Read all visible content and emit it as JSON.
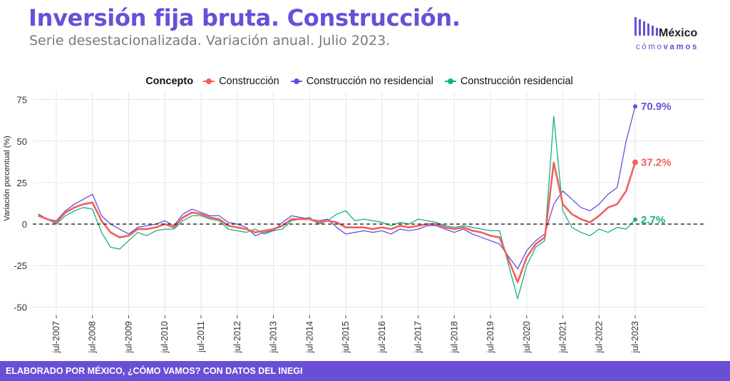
{
  "header": {
    "title": "Inversión fija bruta. Construcción.",
    "subtitle": "Serie desestacionalizada. Variación anual. Julio 2023."
  },
  "logo": {
    "name": "México",
    "sub_a": "cómo",
    "sub_b": "vamos"
  },
  "footer": {
    "text": "ELABORADO POR MÉXICO, ¿CÓMO VAMOS? CON DATOS DEL INEGI"
  },
  "colors": {
    "brand": "#6a4fd6",
    "construccion": "#f0605d",
    "no_residencial": "#6a4fd6",
    "residencial": "#17b086"
  },
  "chart_data": {
    "type": "line",
    "ylabel": "Variación porcentual (%)",
    "ylim": [
      -55,
      80
    ],
    "yticks": [
      -50,
      -25,
      0,
      25,
      50,
      75
    ],
    "ytick_labels": [
      "-50",
      "-25",
      "0",
      "25",
      "50",
      "75"
    ],
    "xlabels": [
      "jul-2007",
      "jul-2008",
      "jul-2009",
      "jul-2010",
      "jul-2011",
      "jul-2012",
      "jul-2013",
      "jul-2014",
      "jul-2015",
      "jul-2016",
      "jul-2017",
      "jul-2018",
      "jul-2019",
      "jul-2020",
      "jul-2021",
      "jul-2022",
      "jul-2023"
    ],
    "legend_title": "Concepto",
    "legend_position": "top",
    "reference_line": 0,
    "grid": true,
    "series": [
      {
        "name": "Construcción",
        "key": "construccion",
        "end_label": "37.2%",
        "points": [
          [
            "2007-01",
            5
          ],
          [
            "2007-04",
            3
          ],
          [
            "2007-07",
            1
          ],
          [
            "2007-10",
            7
          ],
          [
            "2008-01",
            10
          ],
          [
            "2008-04",
            12
          ],
          [
            "2008-07",
            13
          ],
          [
            "2008-10",
            2
          ],
          [
            "2009-01",
            -5
          ],
          [
            "2009-04",
            -8
          ],
          [
            "2009-07",
            -7
          ],
          [
            "2009-10",
            -3
          ],
          [
            "2010-01",
            -3
          ],
          [
            "2010-04",
            -2
          ],
          [
            "2010-07",
            0
          ],
          [
            "2010-10",
            -2
          ],
          [
            "2011-01",
            4
          ],
          [
            "2011-04",
            7
          ],
          [
            "2011-07",
            6
          ],
          [
            "2011-10",
            4
          ],
          [
            "2012-01",
            3
          ],
          [
            "2012-04",
            -1
          ],
          [
            "2012-07",
            -2
          ],
          [
            "2012-10",
            -3
          ],
          [
            "2013-01",
            -5
          ],
          [
            "2013-04",
            -4
          ],
          [
            "2013-07",
            -3
          ],
          [
            "2013-10",
            -1
          ],
          [
            "2014-01",
            3
          ],
          [
            "2014-04",
            3
          ],
          [
            "2014-07",
            3
          ],
          [
            "2014-10",
            1
          ],
          [
            "2015-01",
            2
          ],
          [
            "2015-04",
            1
          ],
          [
            "2015-07",
            -2
          ],
          [
            "2015-10",
            -2
          ],
          [
            "2016-01",
            -2
          ],
          [
            "2016-04",
            -3
          ],
          [
            "2016-07",
            -2
          ],
          [
            "2016-10",
            -3
          ],
          [
            "2017-01",
            -1
          ],
          [
            "2017-04",
            -2
          ],
          [
            "2017-07",
            -1
          ],
          [
            "2017-10",
            0
          ],
          [
            "2018-01",
            0
          ],
          [
            "2018-04",
            -2
          ],
          [
            "2018-07",
            -3
          ],
          [
            "2018-10",
            -2
          ],
          [
            "2019-01",
            -4
          ],
          [
            "2019-04",
            -5
          ],
          [
            "2019-07",
            -7
          ],
          [
            "2019-10",
            -8
          ],
          [
            "2020-04",
            -35
          ],
          [
            "2020-07",
            -20
          ],
          [
            "2020-10",
            -12
          ],
          [
            "2021-01",
            -8
          ],
          [
            "2021-04",
            37
          ],
          [
            "2021-07",
            12
          ],
          [
            "2021-10",
            6
          ],
          [
            "2022-01",
            3
          ],
          [
            "2022-04",
            1
          ],
          [
            "2022-07",
            5
          ],
          [
            "2022-10",
            10
          ],
          [
            "2023-01",
            12
          ],
          [
            "2023-04",
            20
          ],
          [
            "2023-07",
            37.2
          ]
        ]
      },
      {
        "name": "Construcción no residencial",
        "key": "no_residencial",
        "end_label": "70.9%",
        "points": [
          [
            "2007-01",
            6
          ],
          [
            "2007-04",
            3
          ],
          [
            "2007-07",
            2
          ],
          [
            "2007-10",
            8
          ],
          [
            "2008-01",
            12
          ],
          [
            "2008-04",
            15
          ],
          [
            "2008-07",
            18
          ],
          [
            "2008-10",
            5
          ],
          [
            "2009-01",
            0
          ],
          [
            "2009-04",
            -3
          ],
          [
            "2009-07",
            -6
          ],
          [
            "2009-10",
            -2
          ],
          [
            "2010-01",
            -1
          ],
          [
            "2010-04",
            0
          ],
          [
            "2010-07",
            2
          ],
          [
            "2010-10",
            -1
          ],
          [
            "2011-01",
            6
          ],
          [
            "2011-04",
            9
          ],
          [
            "2011-07",
            7
          ],
          [
            "2011-10",
            5
          ],
          [
            "2012-01",
            5
          ],
          [
            "2012-04",
            1
          ],
          [
            "2012-07",
            0
          ],
          [
            "2012-10",
            -2
          ],
          [
            "2013-01",
            -7
          ],
          [
            "2013-04",
            -5
          ],
          [
            "2013-07",
            -4
          ],
          [
            "2013-10",
            1
          ],
          [
            "2014-01",
            5
          ],
          [
            "2014-04",
            4
          ],
          [
            "2014-07",
            3
          ],
          [
            "2014-10",
            2
          ],
          [
            "2015-01",
            3
          ],
          [
            "2015-04",
            -2
          ],
          [
            "2015-07",
            -6
          ],
          [
            "2015-10",
            -5
          ],
          [
            "2016-01",
            -4
          ],
          [
            "2016-04",
            -5
          ],
          [
            "2016-07",
            -4
          ],
          [
            "2016-10",
            -6
          ],
          [
            "2017-01",
            -3
          ],
          [
            "2017-04",
            -4
          ],
          [
            "2017-07",
            -3
          ],
          [
            "2017-10",
            -1
          ],
          [
            "2018-01",
            -1
          ],
          [
            "2018-04",
            -3
          ],
          [
            "2018-07",
            -5
          ],
          [
            "2018-10",
            -3
          ],
          [
            "2019-01",
            -6
          ],
          [
            "2019-04",
            -8
          ],
          [
            "2019-07",
            -10
          ],
          [
            "2019-10",
            -12
          ],
          [
            "2020-04",
            -27
          ],
          [
            "2020-07",
            -16
          ],
          [
            "2020-10",
            -10
          ],
          [
            "2021-01",
            -6
          ],
          [
            "2021-04",
            12
          ],
          [
            "2021-07",
            20
          ],
          [
            "2021-10",
            15
          ],
          [
            "2022-01",
            10
          ],
          [
            "2022-04",
            8
          ],
          [
            "2022-07",
            12
          ],
          [
            "2022-10",
            18
          ],
          [
            "2023-01",
            22
          ],
          [
            "2023-04",
            50
          ],
          [
            "2023-07",
            70.9
          ]
        ]
      },
      {
        "name": "Construcción residencial",
        "key": "residencial",
        "end_label": "2.7%",
        "points": [
          [
            "2007-01",
            6
          ],
          [
            "2007-04",
            3
          ],
          [
            "2007-07",
            0
          ],
          [
            "2007-10",
            5
          ],
          [
            "2008-01",
            8
          ],
          [
            "2008-04",
            10
          ],
          [
            "2008-07",
            9
          ],
          [
            "2008-10",
            -5
          ],
          [
            "2009-01",
            -14
          ],
          [
            "2009-04",
            -15
          ],
          [
            "2009-07",
            -10
          ],
          [
            "2009-10",
            -5
          ],
          [
            "2010-01",
            -7
          ],
          [
            "2010-04",
            -4
          ],
          [
            "2010-07",
            -3
          ],
          [
            "2010-10",
            -3
          ],
          [
            "2011-01",
            2
          ],
          [
            "2011-04",
            5
          ],
          [
            "2011-07",
            5
          ],
          [
            "2011-10",
            3
          ],
          [
            "2012-01",
            2
          ],
          [
            "2012-04",
            -3
          ],
          [
            "2012-07",
            -4
          ],
          [
            "2012-10",
            -5
          ],
          [
            "2013-01",
            -3
          ],
          [
            "2013-04",
            -6
          ],
          [
            "2013-07",
            -4
          ],
          [
            "2013-10",
            -3
          ],
          [
            "2014-01",
            2
          ],
          [
            "2014-04",
            3
          ],
          [
            "2014-07",
            4
          ],
          [
            "2014-10",
            0
          ],
          [
            "2015-01",
            2
          ],
          [
            "2015-04",
            6
          ],
          [
            "2015-07",
            8
          ],
          [
            "2015-10",
            2
          ],
          [
            "2016-01",
            3
          ],
          [
            "2016-04",
            2
          ],
          [
            "2016-07",
            1
          ],
          [
            "2016-10",
            -1
          ],
          [
            "2017-01",
            1
          ],
          [
            "2017-04",
            0
          ],
          [
            "2017-07",
            3
          ],
          [
            "2017-10",
            2
          ],
          [
            "2018-01",
            1
          ],
          [
            "2018-04",
            -1
          ],
          [
            "2018-07",
            -2
          ],
          [
            "2018-10",
            -1
          ],
          [
            "2019-01",
            -2
          ],
          [
            "2019-04",
            -3
          ],
          [
            "2019-07",
            -4
          ],
          [
            "2019-10",
            -4
          ],
          [
            "2020-04",
            -45
          ],
          [
            "2020-07",
            -25
          ],
          [
            "2020-10",
            -14
          ],
          [
            "2021-01",
            -10
          ],
          [
            "2021-04",
            65
          ],
          [
            "2021-07",
            8
          ],
          [
            "2021-10",
            -2
          ],
          [
            "2022-01",
            -5
          ],
          [
            "2022-04",
            -7
          ],
          [
            "2022-07",
            -3
          ],
          [
            "2022-10",
            -5
          ],
          [
            "2023-01",
            -2
          ],
          [
            "2023-04",
            -3
          ],
          [
            "2023-07",
            2.7
          ]
        ]
      }
    ]
  }
}
